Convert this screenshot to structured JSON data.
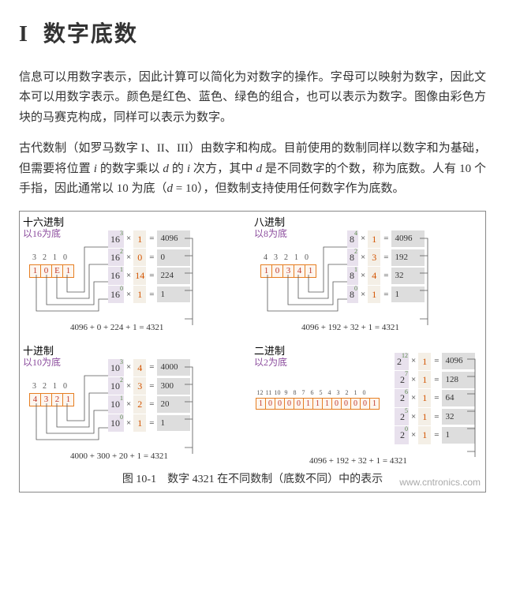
{
  "heading": {
    "roman": "I",
    "title": "数字底数"
  },
  "para1": "信息可以用数字表示，因此计算可以简化为对数字的操作。字母可以映射为数字，因此文本可以用数字表示。颜色是红色、蓝色、绿色的组合，也可以表示为数字。图像由彩色方块的马赛克构成，同样可以表示为数字。",
  "para2_parts": {
    "a": "古代数制（如罗马数字 I、II、III）由数字和构成。目前使用的数制同样以数字和为基础，但需要将位置 ",
    "i1": "i",
    "b": " 的数字乘以 ",
    "d1": "d",
    "c": " 的 ",
    "i2": "i",
    "d": " 次方，其中 ",
    "d2": "d",
    "e": " 是不同数字的个数，称为底数。人有 10 个手指，因此通常以 10 为底（",
    "d3": "d",
    "f": " = 10），但数制支持使用任何数字作为底数。"
  },
  "panels": {
    "hex": {
      "name": "十六进制",
      "sub": "以16为底",
      "base": 16,
      "indices": [
        "3",
        "2",
        "1",
        "0"
      ],
      "digits": [
        "1",
        "0",
        "E",
        "1"
      ],
      "rows": [
        {
          "exp": "3",
          "d": "1",
          "r": "4096"
        },
        {
          "exp": "2",
          "d": "0",
          "r": "0"
        },
        {
          "exp": "1",
          "d": "14",
          "r": "224"
        },
        {
          "exp": "0",
          "d": "1",
          "r": "1"
        }
      ],
      "sum": "4096 + 0 + 224 + 1 = 4321"
    },
    "oct": {
      "name": "八进制",
      "sub": "以8为底",
      "base": 8,
      "indices": [
        "4",
        "3",
        "2",
        "1",
        "0"
      ],
      "digits": [
        "1",
        "0",
        "3",
        "4",
        "1"
      ],
      "rows": [
        {
          "exp": "4",
          "d": "1",
          "r": "4096"
        },
        {
          "exp": "2",
          "d": "3",
          "r": "192"
        },
        {
          "exp": "1",
          "d": "4",
          "r": "32"
        },
        {
          "exp": "0",
          "d": "1",
          "r": "1"
        }
      ],
      "sum": "4096 + 192 + 32 + 1 = 4321"
    },
    "dec": {
      "name": "十进制",
      "sub": "以10为底",
      "base": 10,
      "indices": [
        "3",
        "2",
        "1",
        "0"
      ],
      "digits": [
        "4",
        "3",
        "2",
        "1"
      ],
      "rows": [
        {
          "exp": "3",
          "d": "4",
          "r": "4000"
        },
        {
          "exp": "2",
          "d": "3",
          "r": "300"
        },
        {
          "exp": "1",
          "d": "2",
          "r": "20"
        },
        {
          "exp": "0",
          "d": "1",
          "r": "1"
        }
      ],
      "sum": "4000 + 300 + 20 + 1 = 4321"
    },
    "bin": {
      "name": "二进制",
      "sub": "以2为底",
      "base": 2,
      "indices": [
        "12",
        "11",
        "10",
        "9",
        "8",
        "7",
        "6",
        "5",
        "4",
        "3",
        "2",
        "1",
        "0"
      ],
      "digits": [
        "1",
        "0",
        "0",
        "0",
        "0",
        "1",
        "1",
        "1",
        "0",
        "0",
        "0",
        "0",
        "1"
      ],
      "rows": [
        {
          "exp": "12",
          "d": "1",
          "r": "4096"
        },
        {
          "exp": "7",
          "d": "1",
          "r": "128"
        },
        {
          "exp": "6",
          "d": "1",
          "r": "64"
        },
        {
          "exp": "5",
          "d": "1",
          "r": "32"
        },
        {
          "exp": "0",
          "d": "1",
          "r": "1"
        }
      ],
      "sum": "4096 + 192 + 32 + 1 = 4321"
    }
  },
  "caption": "图 10-1　数字 4321 在不同数制（底数不同）中的表示",
  "watermark": "www.cntronics.com",
  "colors": {
    "purple": "#8a4a9c",
    "orange_border": "#e67e22",
    "digit_text": "#c0392b",
    "base_bg": "#e8e1ed",
    "dig_bg": "#f4efe6",
    "res_bg": "#dddddd",
    "exp": "#5a8a4a"
  }
}
